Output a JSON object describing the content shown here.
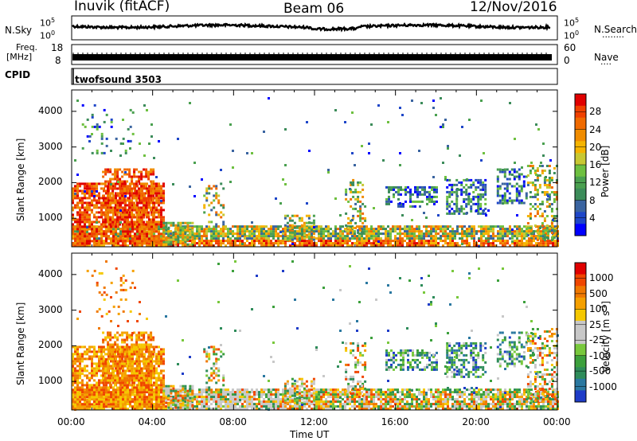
{
  "header": {
    "station": "Inuvik (fitACF)",
    "beam": "Beam 06",
    "date": "12/Nov/2016"
  },
  "noise_panel": {
    "left_label": "N.Sky",
    "right_label": "N.Search",
    "tick_top": "10^5",
    "tick_bottom": "10^0",
    "right_dots": "........"
  },
  "freq_panel": {
    "left_label_1": "Freq.",
    "left_label_2": "[MHz]",
    "left_tick_top": "18",
    "left_tick_bottom": "8",
    "right_label": "Nave",
    "right_tick_top": "60",
    "right_tick_bottom": "0",
    "right_dots": "...."
  },
  "cpid_panel": {
    "label": "CPID",
    "program": "twofsound 3503"
  },
  "chart_data": [
    {
      "type": "heatmap",
      "name": "power",
      "ylabel": "Slant Range [km]",
      "xlabel": "Time UT",
      "x_ticks": [
        "00:00",
        "04:00",
        "08:00",
        "12:00",
        "16:00",
        "20:00",
        "00:00"
      ],
      "y_ticks": [
        1000,
        2000,
        3000,
        4000
      ],
      "ylim": [
        200,
        4600
      ],
      "xlim_hours": [
        0,
        24
      ],
      "colorbar": {
        "label": "Power [dB]",
        "ticks": [
          "4",
          "8",
          "12",
          "16",
          "20",
          "24",
          "28"
        ],
        "colors": [
          "#0000ff",
          "#1e46c8",
          "#3a64a0",
          "#3c8c5a",
          "#4aa050",
          "#6ec040",
          "#c8c832",
          "#f5b400",
          "#f08c00",
          "#f06a00",
          "#f04000",
          "#e00000"
        ]
      }
    },
    {
      "type": "heatmap",
      "name": "velocity",
      "ylabel": "Slant Range [km]",
      "xlabel": "Time UT",
      "x_ticks": [
        "00:00",
        "04:00",
        "08:00",
        "12:00",
        "16:00",
        "20:00",
        "00:00"
      ],
      "y_ticks": [
        1000,
        2000,
        3000,
        4000
      ],
      "ylim": [
        200,
        4600
      ],
      "xlim_hours": [
        0,
        24
      ],
      "colorbar": {
        "label": "Velocity [m s^-1]",
        "ticks": [
          "1000",
          "500",
          "100",
          "25",
          "-25",
          "-100",
          "-500",
          "-1000"
        ],
        "colors": [
          "#1e3cc8",
          "#2a78a0",
          "#2e8c5a",
          "#3ca03c",
          "#78c83c",
          "#c8c8c8",
          "#c8c8c8",
          "#f5c800",
          "#f5a000",
          "#f07800",
          "#f04600",
          "#e00000"
        ]
      }
    }
  ],
  "x_axis": {
    "ticks": [
      "00:00",
      "04:00",
      "08:00",
      "12:00",
      "16:00",
      "20:00",
      "00:00"
    ],
    "label": "Time UT"
  },
  "colors": {
    "noise_line": "#000000",
    "ground_scatter": "#c8c8c8"
  }
}
